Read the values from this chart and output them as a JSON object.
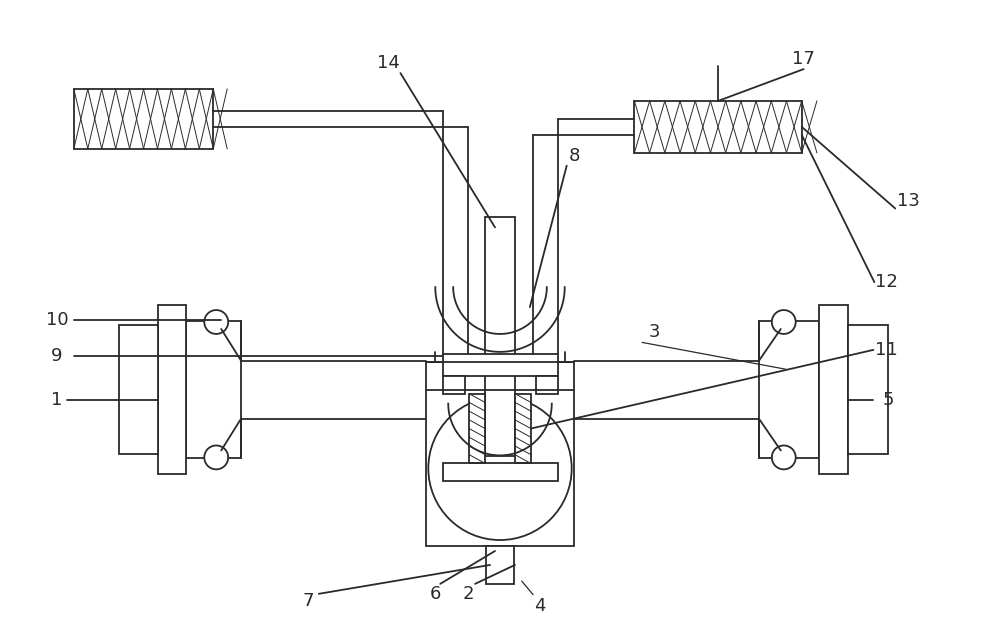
{
  "bg_color": "#ffffff",
  "line_color": "#2a2a2a",
  "lw": 1.3,
  "fig_width": 10.0,
  "fig_height": 6.42,
  "dpi": 100
}
